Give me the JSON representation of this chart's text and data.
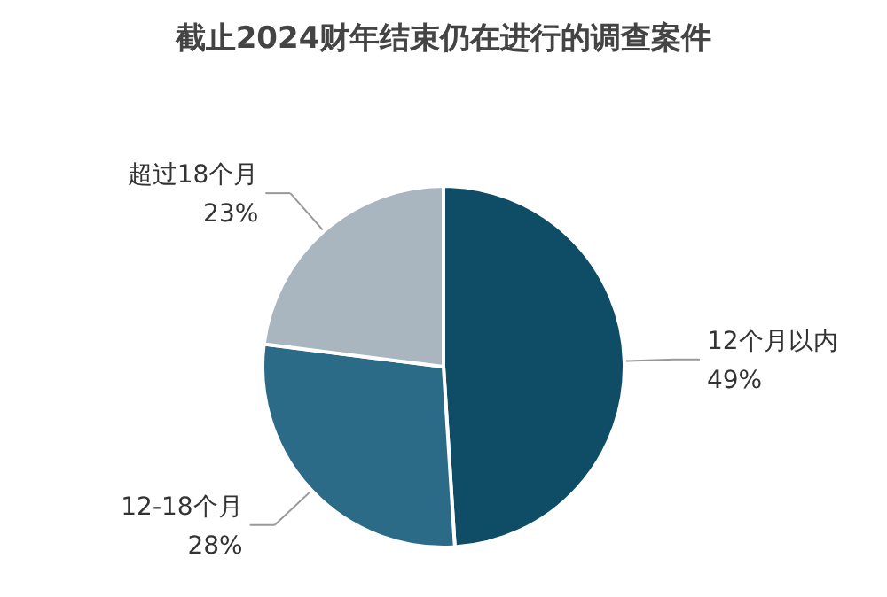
{
  "chart_data": {
    "type": "pie",
    "title": "截止2024财年结束仍在进行的调查案件",
    "categories": [
      "12个月以内",
      "12-18个月",
      "超过18个月"
    ],
    "values": [
      49,
      28,
      23
    ],
    "value_labels": [
      "49%",
      "28%",
      "23%"
    ],
    "colors": [
      "#0f4d66",
      "#2c6b88",
      "#a9b5bf"
    ]
  }
}
